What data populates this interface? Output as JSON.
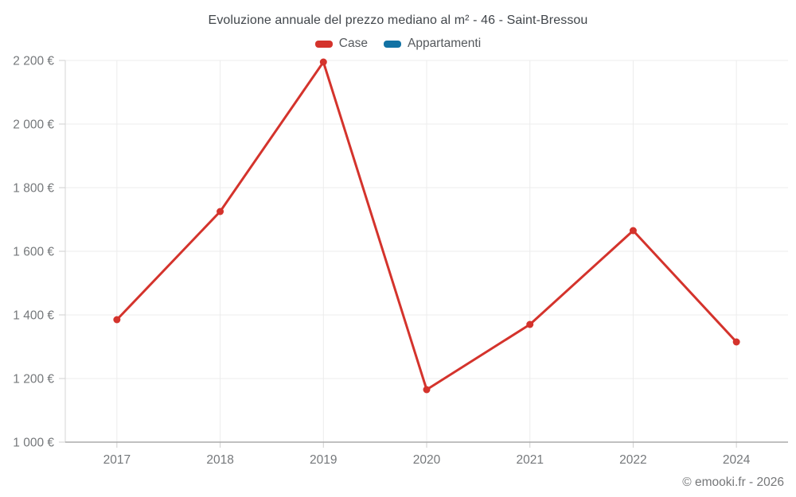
{
  "header": {
    "title": "Evoluzione annuale del prezzo mediano al m² - 46 - Saint-Bressou"
  },
  "legend": {
    "items": [
      {
        "label": "Case",
        "color": "#d4332c"
      },
      {
        "label": "Appartamenti",
        "color": "#1272a4"
      }
    ]
  },
  "footer": {
    "copyright": "© emooki.fr - 2026"
  },
  "chart_data": {
    "type": "line",
    "title": "Evoluzione annuale del prezzo mediano al m² - 46 - Saint-Bressou",
    "xlabel": "",
    "ylabel": "",
    "categories": [
      "2017",
      "2018",
      "2019",
      "2020",
      "2021",
      "2022",
      "2024"
    ],
    "series": [
      {
        "name": "Case",
        "color": "#d4332c",
        "values": [
          1385,
          1725,
          2195,
          1165,
          1370,
          1665,
          1315
        ]
      },
      {
        "name": "Appartamenti",
        "color": "#1272a4",
        "values": []
      }
    ],
    "ylim": [
      1000,
      2200
    ],
    "y_ticks": [
      {
        "value": 1000,
        "label": "1 000 €"
      },
      {
        "value": 1200,
        "label": "1 200 €"
      },
      {
        "value": 1400,
        "label": "1 400 €"
      },
      {
        "value": 1600,
        "label": "1 600 €"
      },
      {
        "value": 1800,
        "label": "1 800 €"
      },
      {
        "value": 2000,
        "label": "2 000 €"
      },
      {
        "value": 2200,
        "label": "2 200 €"
      }
    ],
    "grid": true,
    "legend_position": "top",
    "currency_suffix": "€"
  }
}
